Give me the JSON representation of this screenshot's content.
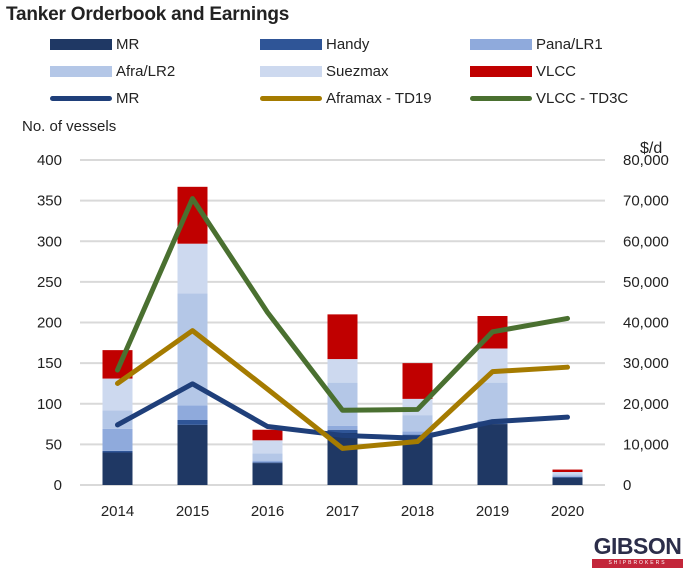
{
  "chart_data": {
    "type": "bar",
    "title": "Tanker Orderbook and Earnings",
    "ylabel": "No. of vessels",
    "y2label": "$/d",
    "xlabel": "",
    "categories": [
      "2014",
      "2015",
      "2016",
      "2017",
      "2018",
      "2019",
      "2020"
    ],
    "ylim": [
      0,
      400
    ],
    "y2lim": [
      0,
      80000
    ],
    "yticks": [
      "0",
      "50",
      "100",
      "150",
      "200",
      "250",
      "300",
      "350",
      "400"
    ],
    "y2ticks": [
      "0",
      "10,000",
      "20,000",
      "30,000",
      "40,000",
      "50,000",
      "60,000",
      "70,000",
      "80,000"
    ],
    "grid": true,
    "legend_position": "top",
    "bar_series": [
      {
        "name": "MR",
        "color": "#1f3864",
        "values": [
          40,
          74,
          27,
          64,
          60,
          75,
          9
        ]
      },
      {
        "name": "Handy",
        "color": "#2f5597",
        "values": [
          2,
          6,
          1,
          4,
          2,
          1,
          1
        ]
      },
      {
        "name": "Pana/LR1",
        "color": "#8faadc",
        "values": [
          27,
          18,
          2,
          5,
          4,
          3,
          1
        ]
      },
      {
        "name": "Afra/LR2",
        "color": "#b4c7e7",
        "values": [
          23,
          138,
          9,
          53,
          20,
          47,
          2
        ]
      },
      {
        "name": "Suezmax",
        "color": "#cdd9ef",
        "values": [
          39,
          61,
          16,
          29,
          20,
          42,
          3
        ]
      },
      {
        "name": "VLCC",
        "color": "#c00000",
        "values": [
          35,
          70,
          13,
          55,
          44,
          40,
          3
        ]
      }
    ],
    "line_series": [
      {
        "name": "MR",
        "color": "#1f3f7a",
        "axis": "right",
        "values": [
          14800,
          24900,
          14400,
          12200,
          11500,
          15600,
          16700
        ]
      },
      {
        "name": "Aframax - TD19",
        "color": "#a57b00",
        "axis": "right",
        "values": [
          25000,
          38000,
          23600,
          9000,
          10700,
          27900,
          29000
        ]
      },
      {
        "name": "VLCC - TD3C",
        "color": "#4a7030",
        "axis": "right",
        "values": [
          28300,
          70500,
          42500,
          18400,
          18600,
          37700,
          41000
        ]
      }
    ]
  },
  "legend": {
    "rows": [
      [
        {
          "label": "MR",
          "kind": "bar",
          "color": "#1f3864"
        },
        {
          "label": "Handy",
          "kind": "bar",
          "color": "#2f5597"
        },
        {
          "label": "Pana/LR1",
          "kind": "bar",
          "color": "#8faadc"
        }
      ],
      [
        {
          "label": "Afra/LR2",
          "kind": "bar",
          "color": "#b4c7e7"
        },
        {
          "label": "Suezmax",
          "kind": "bar",
          "color": "#cdd9ef"
        },
        {
          "label": "VLCC",
          "kind": "bar",
          "color": "#c00000"
        }
      ],
      [
        {
          "label": "MR",
          "kind": "line",
          "color": "#1f3f7a"
        },
        {
          "label": "Aframax - TD19",
          "kind": "line",
          "color": "#a57b00"
        },
        {
          "label": "VLCC - TD3C",
          "kind": "line",
          "color": "#4a7030"
        }
      ]
    ]
  },
  "logo": {
    "name": "GIBSON",
    "sub": "SHIPBROKERS"
  }
}
